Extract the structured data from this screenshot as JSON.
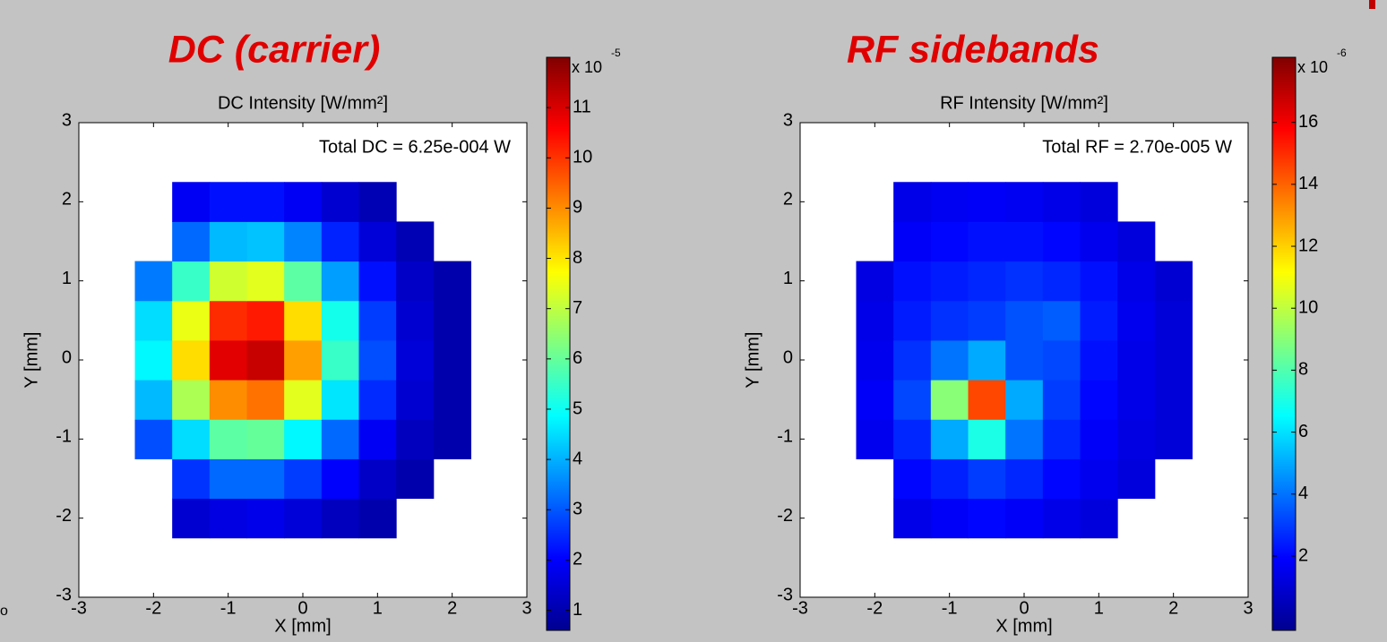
{
  "edge_text": "o",
  "chart_data": [
    {
      "type": "heatmap",
      "title": "DC (carrier)",
      "title_color": "#e00000",
      "axis_title": "DC Intensity [W/mm²]",
      "annotation": "Total DC =  6.25e-004 W",
      "xlabel": "X [mm]",
      "ylabel": "Y [mm]",
      "x": [
        -2,
        -1.5,
        -1,
        -0.5,
        0,
        0.5,
        1,
        1.5,
        2
      ],
      "y": [
        -2,
        -1.5,
        -1,
        -0.5,
        0,
        0.5,
        1,
        1.5,
        2
      ],
      "z": [
        [
          null,
          1.5,
          1.7,
          1.8,
          1.6,
          1.3,
          1.1,
          null,
          null
        ],
        [
          null,
          2.6,
          3.2,
          3.2,
          2.7,
          2.0,
          1.4,
          1.1,
          null
        ],
        [
          2.9,
          4.5,
          5.9,
          6.0,
          4.8,
          3.2,
          1.9,
          1.3,
          1.1
        ],
        [
          4.1,
          6.8,
          9.0,
          9.3,
          7.4,
          4.6,
          2.5,
          1.5,
          1.1
        ],
        [
          4.8,
          8.1,
          10.9,
          11.2,
          8.8,
          5.5,
          2.9,
          1.6,
          1.1
        ],
        [
          4.5,
          7.5,
          10.1,
          10.3,
          8.1,
          5.1,
          2.7,
          1.5,
          1.1
        ],
        [
          3.4,
          5.5,
          7.2,
          7.4,
          5.9,
          3.8,
          2.2,
          1.4,
          1.1
        ],
        [
          null,
          3.2,
          4.1,
          4.2,
          3.5,
          2.4,
          1.6,
          1.2,
          null
        ],
        [
          null,
          1.9,
          2.2,
          2.2,
          1.9,
          1.5,
          1.2,
          null,
          null
        ]
      ],
      "xlim": [
        -3,
        3
      ],
      "ylim": [
        -3,
        3
      ],
      "xticks": [
        -3,
        -2,
        -1,
        0,
        1,
        2,
        3
      ],
      "yticks": [
        -3,
        -2,
        -1,
        0,
        1,
        2,
        3
      ],
      "colormap": "jet",
      "clim": [
        0.6,
        12.0
      ],
      "cticks": [
        1,
        2,
        3,
        4,
        5,
        6,
        7,
        8,
        9,
        10,
        11
      ],
      "colorbar_scale": "x 10",
      "colorbar_exponent": "-5"
    },
    {
      "type": "heatmap",
      "title": "RF sidebands",
      "title_color": "#e00000",
      "axis_title": "RF Intensity  [W/mm²]",
      "annotation": "Total RF =  2.70e-005 W",
      "xlabel": "X [mm]",
      "ylabel": "Y [mm]",
      "x": [
        -2,
        -1.5,
        -1,
        -0.5,
        0,
        0.5,
        1,
        1.5,
        2
      ],
      "y": [
        -2,
        -1.5,
        -1,
        -0.5,
        0,
        0.5,
        1,
        1.5,
        2
      ],
      "z": [
        [
          null,
          1.5,
          1.8,
          2.0,
          1.8,
          1.5,
          1.3,
          null,
          null
        ],
        [
          null,
          2.0,
          2.5,
          3.0,
          2.6,
          2.0,
          1.6,
          1.3,
          null
        ],
        [
          1.6,
          2.6,
          5.0,
          7.0,
          4.0,
          2.6,
          1.8,
          1.4,
          1.2
        ],
        [
          1.8,
          3.2,
          9.0,
          14.5,
          5.0,
          3.0,
          2.0,
          1.5,
          1.2
        ],
        [
          1.6,
          2.8,
          4.0,
          5.0,
          3.4,
          3.2,
          2.2,
          1.5,
          1.2
        ],
        [
          1.5,
          2.4,
          2.8,
          3.0,
          3.4,
          3.6,
          2.4,
          1.6,
          1.2
        ],
        [
          1.4,
          2.2,
          2.4,
          2.6,
          2.8,
          2.6,
          2.2,
          1.5,
          1.1
        ],
        [
          null,
          1.8,
          2.0,
          2.2,
          2.2,
          2.0,
          1.6,
          1.3,
          null
        ],
        [
          null,
          1.5,
          1.7,
          1.8,
          1.7,
          1.5,
          1.3,
          null,
          null
        ]
      ],
      "xlim": [
        -3,
        3
      ],
      "ylim": [
        -3,
        3
      ],
      "xticks": [
        -3,
        -2,
        -1,
        0,
        1,
        2,
        3
      ],
      "yticks": [
        -3,
        -2,
        -1,
        0,
        1,
        2,
        3
      ],
      "colormap": "jet",
      "clim": [
        -0.4,
        18.1
      ],
      "cticks": [
        2,
        4,
        6,
        8,
        10,
        12,
        14,
        16
      ],
      "colorbar_scale": "x 10",
      "colorbar_exponent": "-6"
    }
  ]
}
